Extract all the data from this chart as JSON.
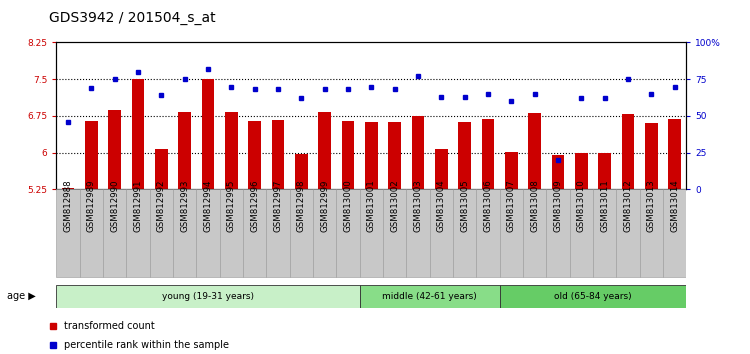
{
  "title": "GDS3942 / 201504_s_at",
  "samples": [
    "GSM812988",
    "GSM812989",
    "GSM812990",
    "GSM812991",
    "GSM812992",
    "GSM812993",
    "GSM812994",
    "GSM812995",
    "GSM812996",
    "GSM812997",
    "GSM812998",
    "GSM812999",
    "GSM813000",
    "GSM813001",
    "GSM813002",
    "GSM813003",
    "GSM813004",
    "GSM813005",
    "GSM813006",
    "GSM813007",
    "GSM813008",
    "GSM813009",
    "GSM813010",
    "GSM813011",
    "GSM813012",
    "GSM813013",
    "GSM813014"
  ],
  "bar_values": [
    5.27,
    6.65,
    6.88,
    7.5,
    6.08,
    6.83,
    7.5,
    6.83,
    6.65,
    6.67,
    5.98,
    6.83,
    6.65,
    6.63,
    6.63,
    6.75,
    6.08,
    6.63,
    6.68,
    6.02,
    6.8,
    5.95,
    6.0,
    6.0,
    6.78,
    6.6,
    6.68
  ],
  "percentile_values": [
    46,
    69,
    75,
    80,
    64,
    75,
    82,
    70,
    68,
    68,
    62,
    68,
    68,
    70,
    68,
    77,
    63,
    63,
    65,
    60,
    65,
    20,
    62,
    62,
    75,
    65,
    70
  ],
  "ylim_left": [
    5.25,
    8.25
  ],
  "ylim_right": [
    0,
    100
  ],
  "yticks_left": [
    5.25,
    6.0,
    6.75,
    7.5,
    8.25
  ],
  "ytick_labels_left": [
    "5.25",
    "6",
    "6.75",
    "7.5",
    "8.25"
  ],
  "yticks_right": [
    0,
    25,
    50,
    75,
    100
  ],
  "ytick_labels_right": [
    "0",
    "25",
    "50",
    "75",
    "100%"
  ],
  "bar_color": "#cc0000",
  "dot_color": "#0000cc",
  "groups": [
    {
      "label": "young (19-31 years)",
      "start": 0,
      "end": 13,
      "color": "#c8f0c8"
    },
    {
      "label": "middle (42-61 years)",
      "start": 13,
      "end": 19,
      "color": "#88dd88"
    },
    {
      "label": "old (65-84 years)",
      "start": 19,
      "end": 27,
      "color": "#66cc66"
    }
  ],
  "age_label": "age",
  "legend_bar_label": "transformed count",
  "legend_dot_label": "percentile rank within the sample",
  "title_fontsize": 10,
  "tick_fontsize": 6.5,
  "label_fontsize": 8
}
